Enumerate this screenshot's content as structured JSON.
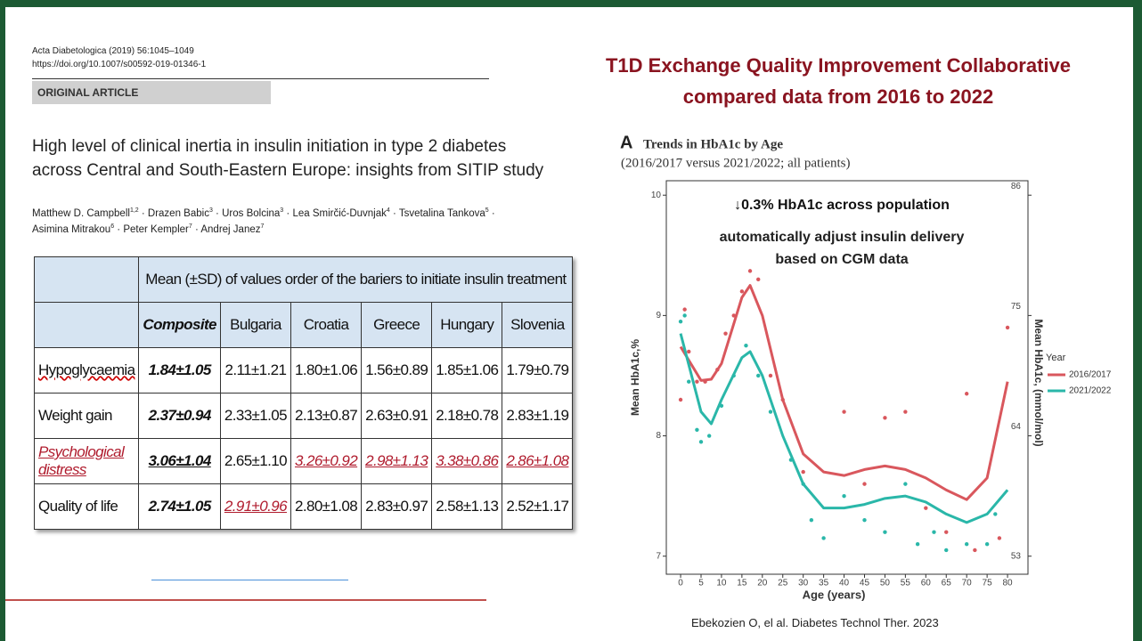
{
  "paper": {
    "journal": "Acta Diabetologica (2019) 56:1045–1049",
    "doi": "https://doi.org/10.1007/s00592-019-01346-1",
    "section": "ORIGINAL ARTICLE",
    "title_lines": [
      "High level of clinical inertia in insulin initiation in type 2 diabetes",
      "across Central and South-Eastern Europe: insights from SITIP study"
    ],
    "author_lines": [
      [
        {
          "name": "Matthew D. Campbell",
          "sup": "1,2"
        },
        {
          "name": "Drazen Babic",
          "sup": "3"
        },
        {
          "name": "Uros Bolcina",
          "sup": "3"
        },
        {
          "name": "Lea Smirčić-Duvnjak",
          "sup": "4"
        },
        {
          "name": "Tsvetalina Tankova",
          "sup": "5"
        }
      ],
      [
        {
          "name": "Asimina Mitrakou",
          "sup": "6"
        },
        {
          "name": "Peter Kempler",
          "sup": "7"
        },
        {
          "name": "Andrej Janez",
          "sup": "7"
        }
      ]
    ]
  },
  "table": {
    "header": "Mean (±SD) of values order of the bariers to initiate insulin treatment",
    "columns": [
      "Composite",
      "Bulgaria",
      "Croatia",
      "Greece",
      "Hungary",
      "Slovenia"
    ],
    "rows": [
      {
        "label": "Hypoglycaemia",
        "cells": [
          "1.84±1.05",
          "2.11±1.21",
          "1.80±1.06",
          "1.56±0.89",
          "1.85±1.06",
          "1.79±0.79"
        ]
      },
      {
        "label": "Weight gain",
        "cells": [
          "2.37±0.94",
          "2.33±1.05",
          "2.13±0.87",
          "2.63±0.91",
          "2.18±0.78",
          "2.83±1.19"
        ]
      },
      {
        "label": "Psychological distress",
        "cells": [
          "3.06±1.04",
          "2.65±1.10",
          "3.26±0.92",
          "2.98±1.13",
          "3.38±0.86",
          "2.86±1.08"
        ]
      },
      {
        "label": "Quality of life",
        "cells": [
          "2.74±1.05",
          "2.91±0.96",
          "2.80±1.08",
          "2.83±0.97",
          "2.58±1.13",
          "2.52±1.17"
        ]
      }
    ]
  },
  "slide_title": [
    "T1D Exchange Quality Improvement Collaborative",
    "compared data from 2016 to 2022"
  ],
  "citation": "Ebekozien O, el al. Diabetes Technol Ther. 2023",
  "chart_data": {
    "type": "line",
    "panel": "A",
    "title": "Trends in HbA1c by Age",
    "subtitle": "(2016/2017 versus 2021/2022; all patients)",
    "annotations": [
      "↓0.3% HbA1c across population",
      "automatically adjust insulin delivery",
      "based on CGM data"
    ],
    "x_label": "Age (years)",
    "y_label": "Mean HbA1c,%",
    "y2_label": "Mean HbA1c, (mmol/mol)",
    "legend_title": "Year",
    "xlim": [
      -3.5,
      85
    ],
    "xticks": [
      0,
      5,
      10,
      15,
      20,
      25,
      30,
      35,
      40,
      45,
      50,
      55,
      60,
      65,
      70,
      75,
      80
    ],
    "ylim": [
      6.85,
      10.12
    ],
    "yticks": [
      7,
      8,
      9,
      10
    ],
    "y2lim": [
      51.35,
      87.32
    ],
    "y2ticks": [
      53,
      64,
      75,
      86
    ],
    "x": [
      0,
      5,
      7.5,
      10,
      15,
      17,
      20,
      25,
      30,
      35,
      40,
      45,
      50,
      55,
      60,
      65,
      70,
      75,
      80
    ],
    "series": [
      {
        "name": "2016/2017",
        "color": "#d9575d",
        "values": [
          8.74,
          8.46,
          8.47,
          8.6,
          9.15,
          9.25,
          9.0,
          8.3,
          7.85,
          7.7,
          7.67,
          7.72,
          7.75,
          7.72,
          7.65,
          7.55,
          7.47,
          7.65,
          8.45
        ],
        "points": {
          "x": [
            0,
            1,
            2,
            4,
            6,
            9,
            11,
            13,
            15,
            17,
            19,
            22,
            25,
            30,
            40,
            45,
            50,
            55,
            60,
            65,
            70,
            72,
            78,
            80
          ],
          "values": [
            8.3,
            9.05,
            8.7,
            8.45,
            8.45,
            8.55,
            8.85,
            9.0,
            9.2,
            9.37,
            9.3,
            8.5,
            8.3,
            7.7,
            8.2,
            7.6,
            8.15,
            8.2,
            7.4,
            7.2,
            8.35,
            7.05,
            7.15,
            8.9
          ]
        }
      },
      {
        "name": "2021/2022",
        "color": "#2ab7a9",
        "values": [
          8.85,
          8.2,
          8.1,
          8.3,
          8.65,
          8.7,
          8.5,
          8.0,
          7.6,
          7.4,
          7.4,
          7.43,
          7.48,
          7.5,
          7.45,
          7.35,
          7.28,
          7.35,
          7.55
        ],
        "points": {
          "x": [
            0,
            1,
            2,
            4,
            5,
            7,
            10,
            13,
            16,
            19,
            22,
            27,
            30,
            32,
            35,
            40,
            45,
            50,
            55,
            58,
            62,
            65,
            70,
            75,
            77
          ],
          "values": [
            8.95,
            9.0,
            8.45,
            8.05,
            7.95,
            8.0,
            8.25,
            8.5,
            8.75,
            8.5,
            8.2,
            7.8,
            7.6,
            7.3,
            7.15,
            7.5,
            7.3,
            7.2,
            7.6,
            7.1,
            7.2,
            7.05,
            7.1,
            7.1,
            7.35
          ]
        }
      }
    ]
  }
}
